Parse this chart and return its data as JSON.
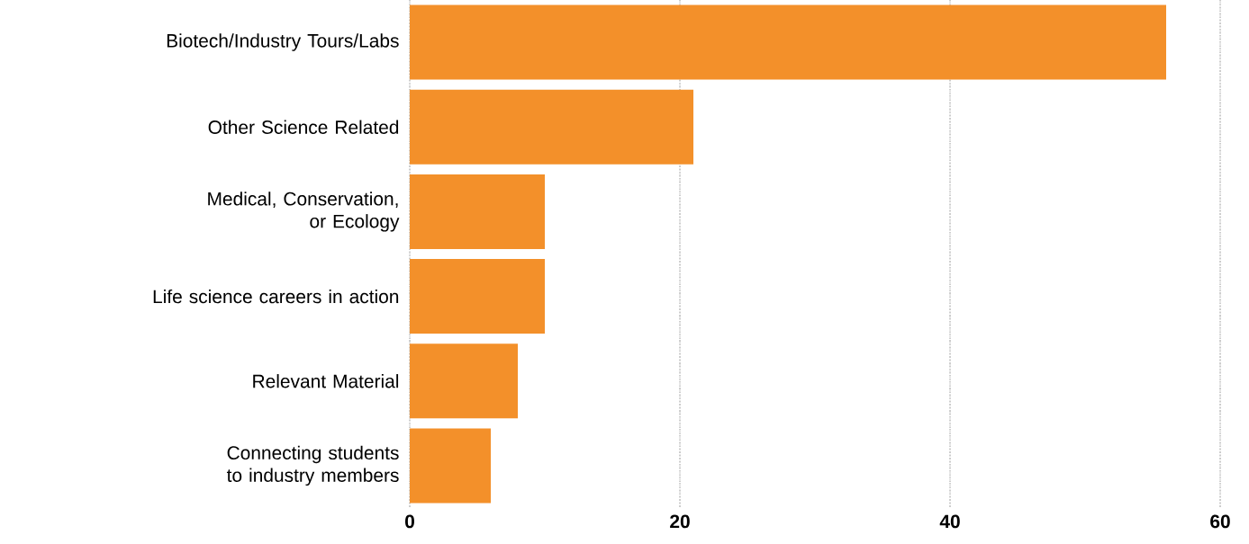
{
  "chart_data": {
    "type": "bar",
    "orientation": "horizontal",
    "categories": [
      "Biotech/Industry Tours/Labs",
      "Other Science Related",
      "Medical, Conservation, or Ecology",
      "Life science careers in action",
      "Relevant Material",
      "Connecting students to industry members"
    ],
    "values": [
      56,
      21,
      10,
      10,
      8,
      6
    ],
    "color": "#f3902a",
    "xlim": [
      0,
      60
    ],
    "xticks": [
      0,
      20,
      40,
      60
    ],
    "grid": "x"
  }
}
